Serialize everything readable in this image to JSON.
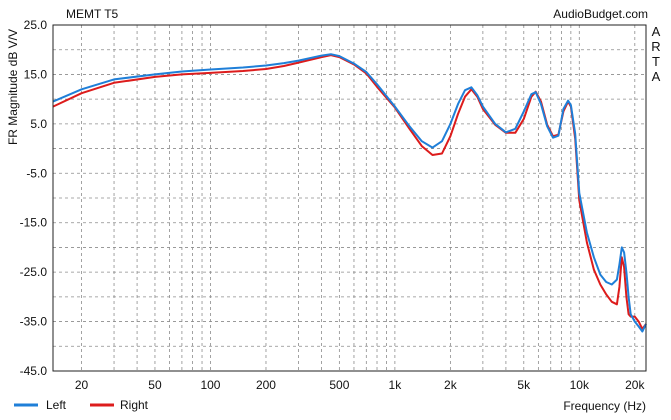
{
  "header": {
    "title": "MEMT T5",
    "source": "AudioBudget.com",
    "side_label": "ARTA"
  },
  "chart_data": {
    "type": "line",
    "title": "MEMT T5",
    "xlabel": "Frequency (Hz)",
    "ylabel": "FR Magnitude dB V/V",
    "xscale": "log",
    "xlim": [
      14,
      23000
    ],
    "ylim": [
      -45,
      25
    ],
    "grid": true,
    "legend_position": "bottom-left",
    "y_ticks": [
      25.0,
      15.0,
      5.0,
      -5.0,
      -15.0,
      -25.0,
      -35.0,
      -45.0
    ],
    "y_tick_labels": [
      "25.0",
      "15.0",
      "5.0",
      "-5.0",
      "-15.0",
      "-25.0",
      "-35.0",
      "-45.0"
    ],
    "x_ticks": [
      20,
      50,
      100,
      200,
      500,
      1000,
      2000,
      5000,
      10000,
      20000
    ],
    "x_tick_labels": [
      "20",
      "50",
      "100",
      "200",
      "500",
      "1k",
      "2k",
      "5k",
      "10k",
      "20k"
    ],
    "series": [
      {
        "name": "Left",
        "color": "#1f7fd8",
        "x": [
          14,
          20,
          30,
          50,
          70,
          100,
          150,
          200,
          250,
          300,
          400,
          450,
          500,
          600,
          700,
          800,
          1000,
          1200,
          1400,
          1600,
          1800,
          2000,
          2200,
          2400,
          2600,
          2800,
          3000,
          3500,
          4000,
          4500,
          5000,
          5500,
          5800,
          6200,
          6700,
          7200,
          7700,
          8200,
          8700,
          9000,
          9500,
          10000,
          11000,
          12000,
          13000,
          14000,
          15000,
          16000,
          16500,
          17000,
          17500,
          18000,
          18500,
          19000,
          20000,
          21000,
          22000,
          23000
        ],
        "y": [
          9.5,
          12.0,
          14.0,
          15.0,
          15.6,
          16.0,
          16.4,
          16.8,
          17.3,
          17.8,
          18.8,
          19.1,
          18.7,
          17.2,
          15.5,
          13.0,
          8.5,
          4.5,
          1.5,
          0.2,
          1.5,
          5.0,
          9.0,
          11.8,
          12.4,
          10.8,
          8.5,
          5.0,
          3.3,
          4.0,
          7.5,
          11.0,
          11.4,
          9.0,
          4.5,
          2.2,
          2.6,
          8.0,
          9.7,
          8.8,
          3.0,
          -9.0,
          -17.0,
          -22.0,
          -25.5,
          -27.0,
          -27.5,
          -26.5,
          -23.5,
          -20.0,
          -21.0,
          -25.0,
          -30.0,
          -33.5,
          -35.0,
          -36.0,
          -37.0,
          -35.5
        ]
      },
      {
        "name": "Right",
        "color": "#dd1c1c",
        "x": [
          14,
          20,
          30,
          50,
          70,
          100,
          150,
          200,
          250,
          300,
          400,
          450,
          500,
          600,
          700,
          800,
          1000,
          1200,
          1400,
          1600,
          1800,
          2000,
          2200,
          2400,
          2600,
          2800,
          3000,
          3500,
          4000,
          4500,
          5000,
          5500,
          5800,
          6200,
          6700,
          7200,
          7700,
          8200,
          8700,
          9000,
          9500,
          10000,
          11000,
          12000,
          13000,
          14000,
          15000,
          16000,
          16500,
          17000,
          17500,
          18000,
          18500,
          19000,
          20000,
          21000,
          22000,
          23000
        ],
        "y": [
          8.5,
          11.2,
          13.3,
          14.5,
          15.0,
          15.3,
          15.7,
          16.1,
          16.7,
          17.4,
          18.5,
          18.9,
          18.5,
          17.0,
          15.2,
          12.5,
          8.3,
          4.0,
          0.5,
          -1.3,
          -1.0,
          2.5,
          7.0,
          10.5,
          12.0,
          10.5,
          8.0,
          4.8,
          3.2,
          3.2,
          6.0,
          10.5,
          11.5,
          9.5,
          4.8,
          2.5,
          2.8,
          7.5,
          9.5,
          8.5,
          2.0,
          -10.5,
          -19.0,
          -24.5,
          -27.5,
          -29.5,
          -31.0,
          -31.5,
          -28.0,
          -22.0,
          -24.0,
          -30.0,
          -33.5,
          -34.0,
          -34.0,
          -35.0,
          -36.5,
          -35.5
        ]
      }
    ]
  }
}
